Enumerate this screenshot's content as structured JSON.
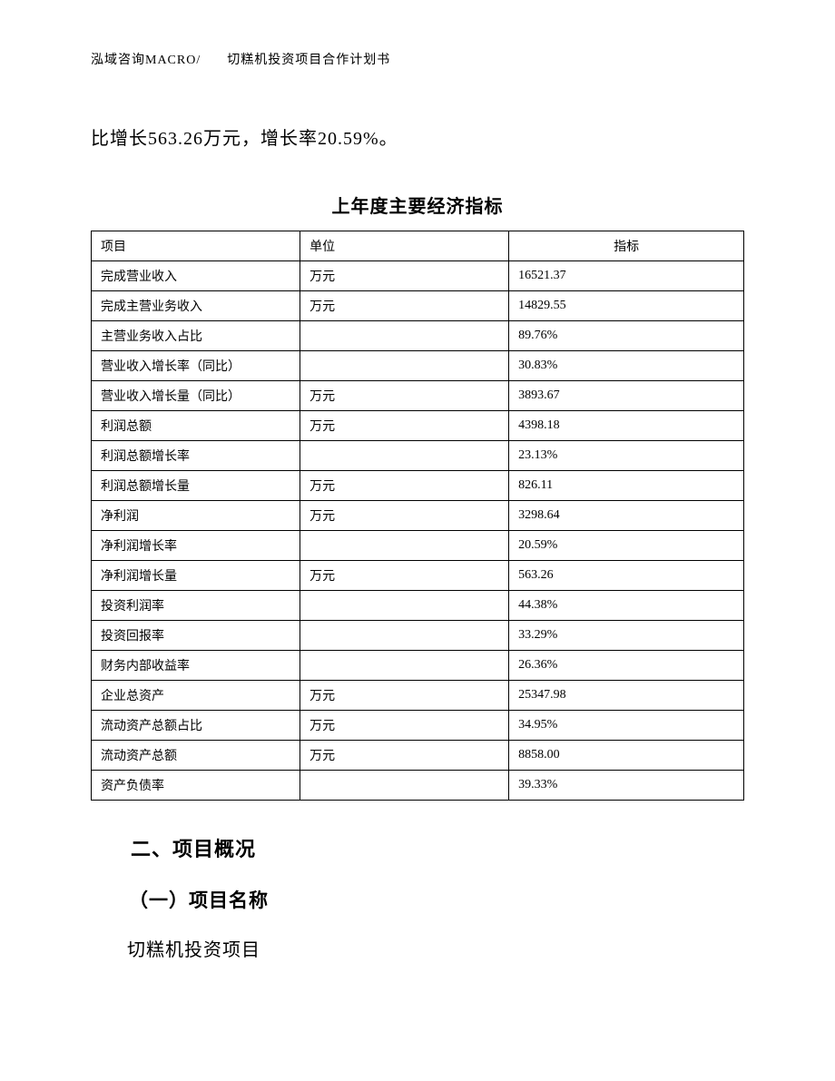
{
  "header": {
    "left": "泓域咨询MACRO/",
    "right": "切糕机投资项目合作计划书"
  },
  "intro_text": "比增长563.26万元，增长率20.59%。",
  "table": {
    "title": "上年度主要经济指标",
    "columns": [
      "项目",
      "单位",
      "指标"
    ],
    "col_widths": [
      "32%",
      "32%",
      "36%"
    ],
    "header_align": [
      "left",
      "left",
      "center"
    ],
    "cell_align": [
      "left",
      "left",
      "left"
    ],
    "border_color": "#000000",
    "font_size": 14,
    "rows": [
      {
        "item": "完成营业收入",
        "unit": "万元",
        "value": "16521.37"
      },
      {
        "item": "完成主营业务收入",
        "unit": "万元",
        "value": "14829.55"
      },
      {
        "item": "主营业务收入占比",
        "unit": "",
        "value": "89.76%"
      },
      {
        "item": "营业收入增长率（同比）",
        "unit": "",
        "value": "30.83%"
      },
      {
        "item": "营业收入增长量（同比）",
        "unit": "万元",
        "value": "3893.67"
      },
      {
        "item": "利润总额",
        "unit": "万元",
        "value": "4398.18"
      },
      {
        "item": "利润总额增长率",
        "unit": "",
        "value": "23.13%"
      },
      {
        "item": "利润总额增长量",
        "unit": "万元",
        "value": "826.11"
      },
      {
        "item": "净利润",
        "unit": "万元",
        "value": "3298.64"
      },
      {
        "item": "净利润增长率",
        "unit": "",
        "value": "20.59%"
      },
      {
        "item": "净利润增长量",
        "unit": "万元",
        "value": "563.26"
      },
      {
        "item": "投资利润率",
        "unit": "",
        "value": "44.38%"
      },
      {
        "item": "投资回报率",
        "unit": "",
        "value": "33.29%"
      },
      {
        "item": "财务内部收益率",
        "unit": "",
        "value": "26.36%"
      },
      {
        "item": "企业总资产",
        "unit": "万元",
        "value": "25347.98"
      },
      {
        "item": "流动资产总额占比",
        "unit": "万元",
        "value": "34.95%"
      },
      {
        "item": "流动资产总额",
        "unit": "万元",
        "value": "8858.00"
      },
      {
        "item": "资产负债率",
        "unit": "",
        "value": "39.33%"
      }
    ]
  },
  "sections": {
    "heading2": "二、项目概况",
    "subheading1": "（一）项目名称",
    "project_name": "切糕机投资项目"
  },
  "style": {
    "background_color": "#ffffff",
    "text_color": "#000000",
    "body_font_size": 20,
    "header_font_size": 14,
    "table_title_font_size": 20,
    "section_heading_font_size": 22,
    "sub_heading_font_size": 21
  }
}
